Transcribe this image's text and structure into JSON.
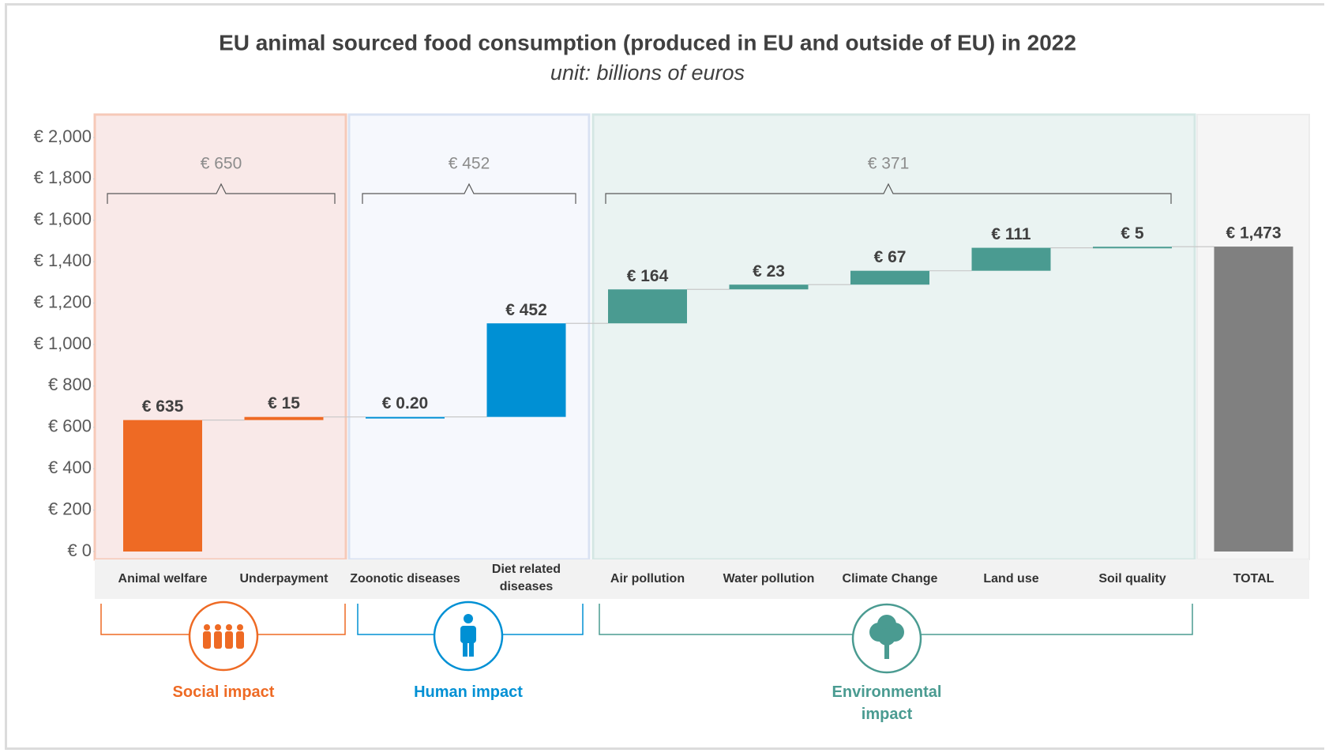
{
  "chart_data": {
    "type": "waterfall",
    "title": "EU animal sourced food consumption (produced in EU and outside of EU) in 2022",
    "subtitle": "unit: billions of euros",
    "categories": [
      "Animal welfare",
      "Underpayment",
      "Zoonotic diseases",
      "Diet related diseases",
      "Air pollution",
      "Water pollution",
      "Climate Change",
      "Land use",
      "Soil quality",
      "TOTAL"
    ],
    "values": [
      635,
      15,
      0.2,
      452,
      164,
      23,
      67,
      111,
      5,
      1473
    ],
    "value_labels": [
      "€ 635",
      "€ 15",
      "€ 0.20",
      "€ 452",
      "€ 164",
      "€ 23",
      "€ 67",
      "€ 111",
      "€ 5",
      "€ 1,473"
    ],
    "colors": [
      "#ee6a24",
      "#ee6a24",
      "#0090d4",
      "#0090d4",
      "#4a9b91",
      "#4a9b91",
      "#4a9b91",
      "#4a9b91",
      "#4a9b91",
      "#808080"
    ],
    "total_bar": true,
    "groups": [
      {
        "name": "Social impact",
        "total": 650,
        "total_label": "€ 650",
        "color": "#ee6a24"
      },
      {
        "name": "Human impact",
        "total": 452,
        "total_label": "€ 452",
        "color": "#0090d4"
      },
      {
        "name": "Environmental impact",
        "total": 371,
        "total_label": "€ 371",
        "color": "#4a9b91"
      }
    ],
    "ylim": [
      0,
      2000
    ],
    "yticks": [
      {
        "value": 0,
        "label": "€ 0"
      },
      {
        "value": 200,
        "label": "€ 200"
      },
      {
        "value": 400,
        "label": "€ 400"
      },
      {
        "value": 600,
        "label": "€ 600"
      },
      {
        "value": 800,
        "label": "€ 800"
      },
      {
        "value": 1000,
        "label": "€ 1,000"
      },
      {
        "value": 1200,
        "label": "€ 1,200"
      },
      {
        "value": 1400,
        "label": "€ 1,400"
      },
      {
        "value": 1600,
        "label": "€ 1,600"
      },
      {
        "value": 1800,
        "label": "€ 1,800"
      },
      {
        "value": 2000,
        "label": "€ 2,000"
      }
    ]
  }
}
